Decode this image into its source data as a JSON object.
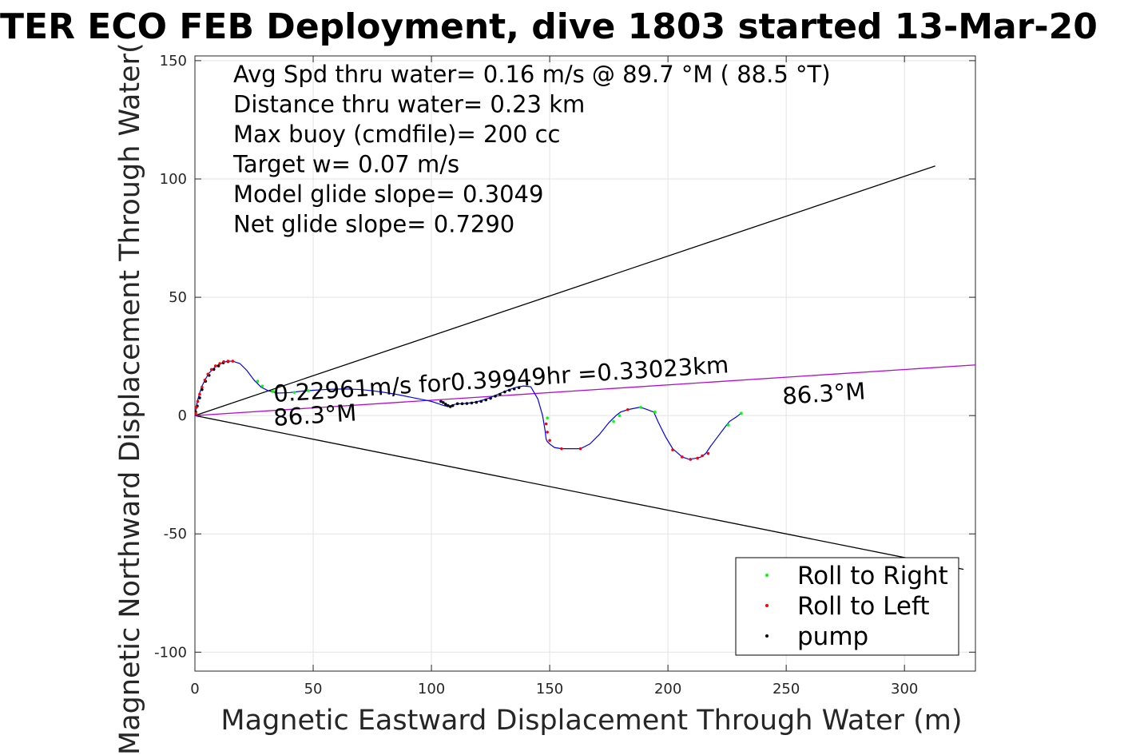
{
  "chart_data": {
    "type": "scatter",
    "title": "TER ECO FEB Deployment, dive 1803 started 13-Mar-20",
    "xlabel": "Magnetic Eastward Displacement Through Water (m)",
    "ylabel": "Magnetic Northward Displacement Through Water(",
    "xlim": [
      0,
      330
    ],
    "ylim": [
      -108,
      152
    ],
    "xticks": [
      0,
      50,
      100,
      150,
      200,
      250,
      300
    ],
    "yticks": [
      -100,
      -50,
      0,
      50,
      100,
      150
    ],
    "grid": true,
    "stats": [
      "Avg Spd thru water=  0.16 m/s @  89.7 °M ( 88.5 °T)",
      "Distance thru water=  0.23 km",
      "Max buoy (cmdfile)= 200 cc",
      "Target w= 0.07 m/s",
      "Model glide slope= 0.3049",
      "Net glide slope= 0.7290"
    ],
    "annotations": {
      "speed": "0.22961m/s for0.39949hr =0.33023km",
      "heading_left": "86.3°M",
      "heading_right": "86.3°M"
    },
    "lines": [
      {
        "name": "",
        "color": "#000000",
        "x": [
          0,
          313
        ],
        "y": [
          0,
          105.5
        ]
      },
      {
        "name": "",
        "color": "#000000",
        "x": [
          0,
          325
        ],
        "y": [
          0,
          -65
        ]
      },
      {
        "name": "",
        "color": "#cc00cc",
        "x": [
          0,
          330
        ],
        "y": [
          0,
          21.4
        ]
      }
    ],
    "track": {
      "color": "#0000ff",
      "x": [
        0,
        0.5,
        1,
        2,
        3,
        4.5,
        6,
        8,
        10,
        12,
        14,
        16,
        19,
        22,
        25,
        28,
        31,
        35,
        40,
        45,
        50,
        55,
        60,
        65,
        70,
        75,
        80,
        85,
        90,
        95,
        100,
        103,
        105,
        107,
        108,
        109,
        111,
        113,
        115,
        118,
        121,
        124,
        127,
        130,
        133,
        136,
        139,
        142,
        145,
        147,
        148,
        148.5,
        149,
        150,
        152,
        155,
        160,
        163,
        167,
        171,
        175,
        178,
        180,
        183,
        188,
        190,
        194,
        196,
        199,
        202,
        206,
        209,
        212,
        214,
        216,
        218,
        221,
        224,
        226,
        229,
        231
      ],
      "y": [
        0,
        3,
        6,
        9.5,
        12.5,
        15.5,
        18,
        20,
        21.5,
        22.5,
        23,
        23,
        22,
        19,
        15,
        12,
        10.5,
        9.5,
        9.7,
        10.3,
        10.7,
        11,
        11.2,
        11.2,
        11,
        10.5,
        9.8,
        9,
        8,
        7,
        6,
        5,
        4.3,
        3.8,
        4,
        4.5,
        5,
        5,
        5.2,
        5.6,
        6.3,
        7.3,
        8.5,
        9.8,
        11,
        12,
        12.5,
        12.2,
        7,
        0,
        -6,
        -10,
        -11,
        -12,
        -13.5,
        -14,
        -14,
        -14,
        -12,
        -8,
        -3,
        0,
        1.5,
        2.5,
        3.5,
        3,
        1.5,
        -3,
        -9,
        -14,
        -17.5,
        -18.5,
        -18,
        -17.5,
        -16,
        -13,
        -9,
        -5,
        -2.5,
        -0.5,
        1
      ]
    },
    "points": {
      "roll_right": {
        "name": "Roll to Right",
        "color": "#00ff00",
        "x": [
          26.5,
          28.5,
          33,
          42,
          48,
          149,
          177,
          179.5,
          188.5,
          194.5,
          225.5,
          231
        ],
        "y": [
          14.5,
          12.5,
          10.2,
          9.8,
          10.5,
          -1,
          -2.5,
          0,
          3.5,
          1.5,
          -4,
          1
        ]
      },
      "roll_left": {
        "name": "Roll to Left",
        "color": "#ff0000",
        "x": [
          0.3,
          0.6,
          1.2,
          2,
          3,
          4.2,
          5.5,
          7,
          8.7,
          10.5,
          12.2,
          14,
          16,
          148.5,
          149,
          150,
          155,
          163,
          183,
          202,
          206,
          209.5,
          212.5,
          214.5,
          217
        ],
        "y": [
          1,
          3.5,
          6,
          9,
          12,
          15,
          17.5,
          19.5,
          21,
          22,
          22.8,
          23,
          23,
          -3.5,
          -7,
          -10.5,
          -14,
          -14,
          2.5,
          -14.5,
          -17.5,
          -18.5,
          -18,
          -17,
          -16
        ]
      },
      "pump": {
        "name": "pump",
        "color": "#000000",
        "x": [
          0.3,
          1,
          2,
          3,
          4.5,
          6,
          8,
          10,
          12,
          14,
          104,
          105,
          106,
          107,
          108,
          109,
          111,
          113,
          115,
          117,
          119,
          121,
          123,
          125,
          127,
          129,
          131,
          133,
          135,
          137
        ],
        "y": [
          1.5,
          4,
          7.5,
          11,
          14.5,
          17,
          19.5,
          21,
          22.3,
          22.8,
          6,
          5.5,
          4.8,
          4.2,
          3.8,
          4.2,
          5,
          5,
          5.1,
          5.3,
          5.6,
          6,
          6.6,
          7.3,
          8.2,
          9,
          10,
          10.7,
          11.3,
          11.8
        ]
      }
    },
    "legend_position": "bottom-right"
  }
}
